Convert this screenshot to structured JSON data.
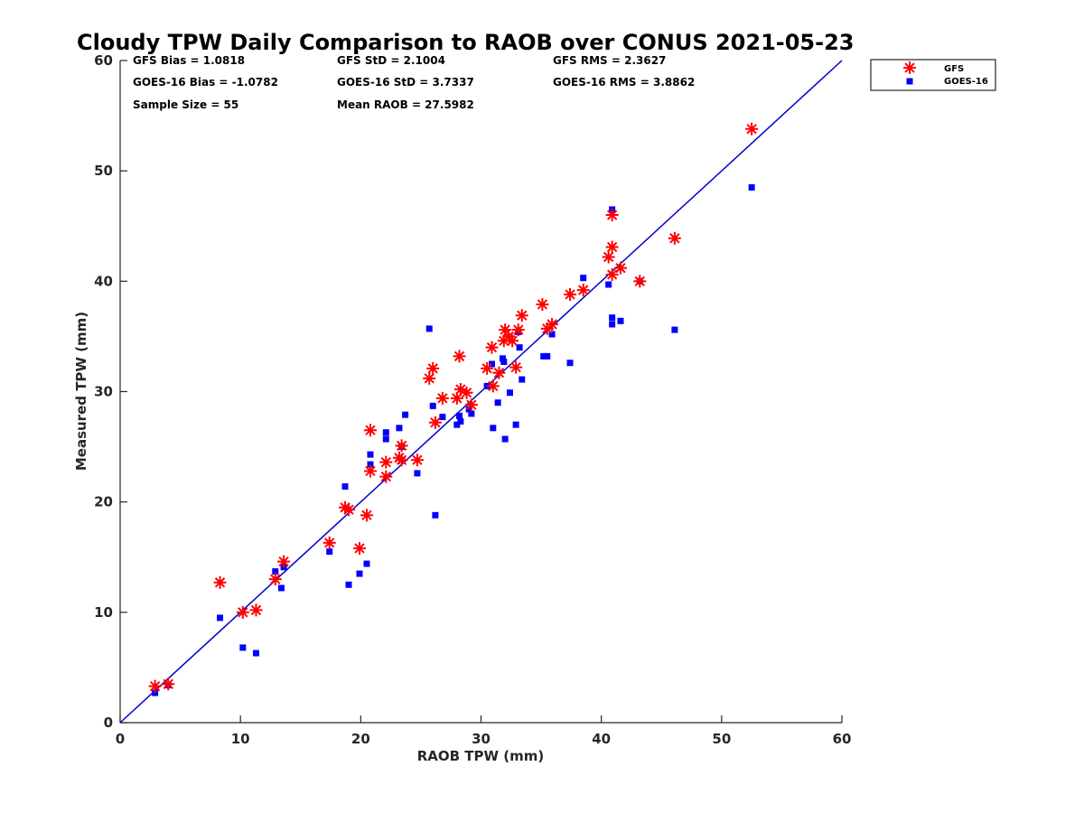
{
  "chart_data": {
    "type": "scatter",
    "title": "Cloudy TPW Daily Comparison to RAOB over CONUS 2021-05-23",
    "xlabel": "RAOB TPW (mm)",
    "ylabel": "Measured TPW (mm)",
    "xlim": [
      0,
      60
    ],
    "ylim": [
      0,
      60
    ],
    "xticks": [
      "0",
      "10",
      "20",
      "30",
      "40",
      "50",
      "60"
    ],
    "yticks": [
      "0",
      "10",
      "20",
      "30",
      "40",
      "50",
      "60"
    ],
    "grid": false,
    "legend_position": "top-right, outside plot",
    "stats": [
      "GFS Bias = 1.0818",
      "GFS StD = 2.1004",
      "GFS RMS = 2.3627",
      "GOES-16 Bias = -1.0782",
      "GOES-16 StD = 3.7337",
      "GOES-16 RMS = 3.8862",
      "Sample Size = 55",
      "Mean RAOB = 27.5982"
    ],
    "reference_line": {
      "type": "one-to-one",
      "color": "#0000cc"
    },
    "series": [
      {
        "name": "GFS",
        "marker": "asterisk",
        "color": "#ff0000",
        "points": [
          [
            2.9,
            3.3
          ],
          [
            4.0,
            3.5
          ],
          [
            8.3,
            12.7
          ],
          [
            10.2,
            10.0
          ],
          [
            11.3,
            10.2
          ],
          [
            12.9,
            13.0
          ],
          [
            13.6,
            14.6
          ],
          [
            17.4,
            16.3
          ],
          [
            18.7,
            19.5
          ],
          [
            19.0,
            19.3
          ],
          [
            19.9,
            15.8
          ],
          [
            20.5,
            18.8
          ],
          [
            20.8,
            26.5
          ],
          [
            20.8,
            22.8
          ],
          [
            22.1,
            22.3
          ],
          [
            22.1,
            23.6
          ],
          [
            23.2,
            24.0
          ],
          [
            23.4,
            25.1
          ],
          [
            23.4,
            23.8
          ],
          [
            24.7,
            23.8
          ],
          [
            25.7,
            31.2
          ],
          [
            26.0,
            32.1
          ],
          [
            26.2,
            27.2
          ],
          [
            26.8,
            29.4
          ],
          [
            28.0,
            29.4
          ],
          [
            28.2,
            33.2
          ],
          [
            28.3,
            30.2
          ],
          [
            28.8,
            29.9
          ],
          [
            29.2,
            28.8
          ],
          [
            30.5,
            32.1
          ],
          [
            30.9,
            34.0
          ],
          [
            31.0,
            30.5
          ],
          [
            31.5,
            31.7
          ],
          [
            31.9,
            34.6
          ],
          [
            32.0,
            35.6
          ],
          [
            32.3,
            35.0
          ],
          [
            32.6,
            34.6
          ],
          [
            32.9,
            32.2
          ],
          [
            33.1,
            35.6
          ],
          [
            33.4,
            36.9
          ],
          [
            35.1,
            37.9
          ],
          [
            35.5,
            35.7
          ],
          [
            35.9,
            36.1
          ],
          [
            37.4,
            38.8
          ],
          [
            38.5,
            39.2
          ],
          [
            40.6,
            42.2
          ],
          [
            40.9,
            46.0
          ],
          [
            40.9,
            43.1
          ],
          [
            40.9,
            40.6
          ],
          [
            41.6,
            41.2
          ],
          [
            43.2,
            40.0
          ],
          [
            46.1,
            43.9
          ],
          [
            52.5,
            53.8
          ]
        ]
      },
      {
        "name": "GOES-16",
        "marker": "square",
        "color": "#0000ff",
        "points": [
          [
            2.9,
            2.7
          ],
          [
            4.0,
            3.4
          ],
          [
            8.3,
            9.5
          ],
          [
            10.2,
            6.8
          ],
          [
            11.3,
            6.3
          ],
          [
            12.9,
            13.7
          ],
          [
            13.4,
            12.2
          ],
          [
            13.6,
            14.1
          ],
          [
            17.4,
            15.5
          ],
          [
            18.7,
            21.4
          ],
          [
            19.0,
            12.5
          ],
          [
            19.9,
            13.5
          ],
          [
            20.5,
            14.4
          ],
          [
            20.8,
            24.3
          ],
          [
            20.8,
            23.4
          ],
          [
            22.1,
            26.3
          ],
          [
            22.1,
            25.7
          ],
          [
            23.2,
            26.7
          ],
          [
            23.4,
            25.0
          ],
          [
            23.7,
            27.9
          ],
          [
            24.7,
            22.6
          ],
          [
            25.7,
            35.7
          ],
          [
            26.0,
            28.7
          ],
          [
            26.2,
            18.8
          ],
          [
            26.8,
            27.7
          ],
          [
            28.0,
            27.0
          ],
          [
            28.2,
            27.8
          ],
          [
            28.3,
            27.3
          ],
          [
            29.0,
            28.4
          ],
          [
            29.2,
            28.0
          ],
          [
            30.5,
            30.5
          ],
          [
            30.9,
            32.5
          ],
          [
            31.0,
            26.7
          ],
          [
            31.4,
            29.0
          ],
          [
            31.8,
            33.0
          ],
          [
            31.9,
            32.7
          ],
          [
            32.0,
            25.7
          ],
          [
            32.4,
            29.9
          ],
          [
            32.9,
            27.0
          ],
          [
            33.1,
            35.4
          ],
          [
            33.2,
            34.0
          ],
          [
            33.4,
            31.1
          ],
          [
            35.2,
            33.2
          ],
          [
            35.5,
            33.2
          ],
          [
            35.9,
            35.2
          ],
          [
            37.4,
            32.6
          ],
          [
            38.5,
            40.3
          ],
          [
            40.6,
            39.7
          ],
          [
            40.9,
            46.5
          ],
          [
            40.9,
            36.7
          ],
          [
            40.9,
            36.1
          ],
          [
            41.6,
            36.4
          ],
          [
            43.2,
            40.0
          ],
          [
            46.1,
            35.6
          ],
          [
            52.5,
            48.5
          ]
        ]
      }
    ]
  }
}
